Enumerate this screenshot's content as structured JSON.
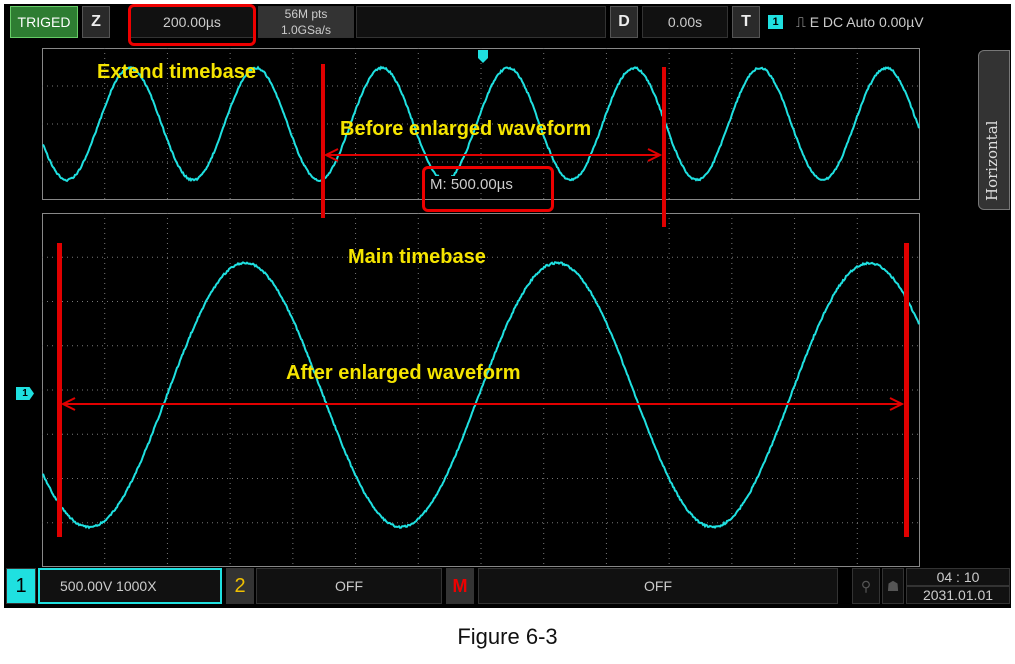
{
  "top_bar": {
    "trig_status": "TRIGED",
    "zoom_button": "Z",
    "timebase": "200.00µs",
    "memory_depth": "56M pts",
    "sample_rate": "1.0GSa/s",
    "delay_button": "D",
    "delay_value": "0.00s",
    "trigger_button": "T",
    "trigger_channel": "1",
    "trigger_info": "⎍ E DC Auto 0.00µV"
  },
  "upper_panel": {
    "main_timebase_label": "M: 500.00µs"
  },
  "side_tab": {
    "label": "Horizontal"
  },
  "annotations": {
    "extend_timebase": "Extend timebase",
    "before": "Before enlarged waveform",
    "main_timebase": "Main timebase",
    "after": "After enlarged waveform"
  },
  "bottom_bar": {
    "ch1_label": "1",
    "ch1_settings": "500.00V 1000X",
    "ch2_label": "2",
    "ch2_status": "OFF",
    "math_label": "M",
    "math_status": "OFF",
    "time": "04 : 10",
    "date": "2031.01.01"
  },
  "caption": "Figure 6-3",
  "colors": {
    "waveform": "#1fe0e0",
    "annotation": "#e00000",
    "label": "#f5e400",
    "trig_green": "#2e7d32"
  }
}
